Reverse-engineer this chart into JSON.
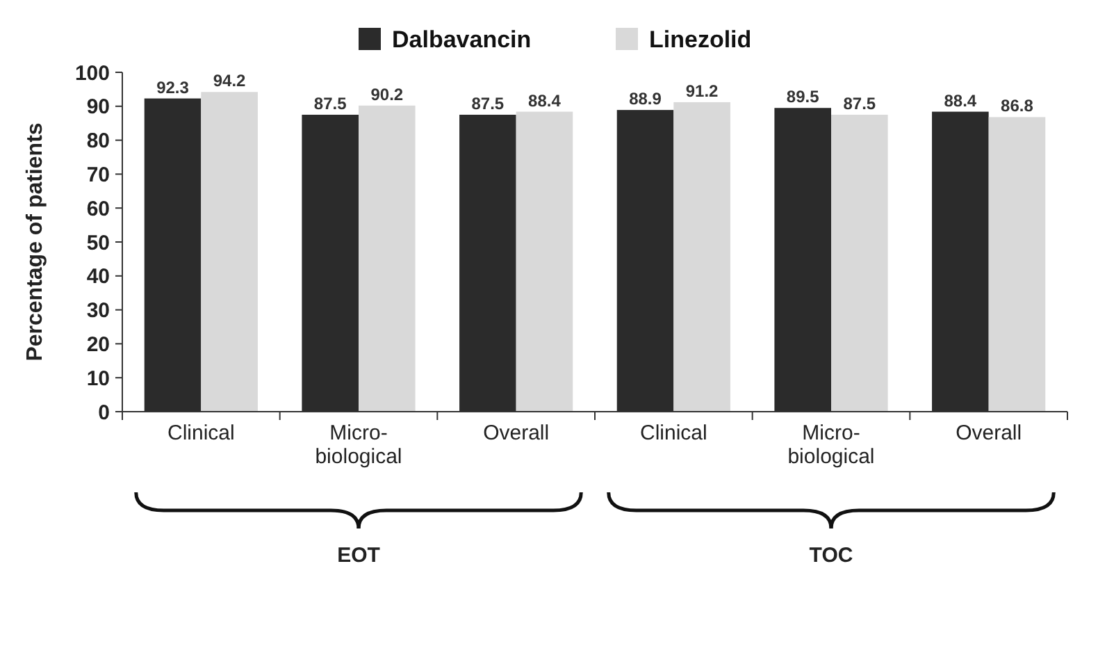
{
  "chart_data": {
    "type": "bar",
    "ylabel": "Percentage of patients",
    "categories": [
      "Clinical",
      "Micro-biological",
      "Overall",
      "Clinical",
      "Micro-biological",
      "Overall"
    ],
    "series": [
      {
        "name": "Dalbavancin",
        "color": "#2b2b2b",
        "values": [
          92.3,
          87.5,
          87.5,
          88.9,
          89.5,
          88.4
        ]
      },
      {
        "name": "Linezolid",
        "color": "#d9d9d9",
        "values": [
          94.2,
          90.2,
          88.4,
          91.2,
          87.5,
          86.8
        ]
      }
    ],
    "ylim": [
      0,
      100
    ],
    "yticks": [
      0,
      10,
      20,
      30,
      40,
      50,
      60,
      70,
      80,
      90,
      100
    ],
    "data_labels": true,
    "legend": "top",
    "grid": false,
    "annotations": [
      "EOT",
      "TOC"
    ]
  }
}
